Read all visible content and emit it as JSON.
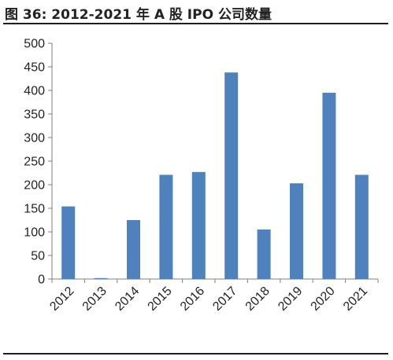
{
  "figure": {
    "title": "图 36:  2012-2021 年 A 股 IPO 公司数量"
  },
  "colors": {
    "bar": "#4f81bd",
    "axis": "#7f7f7f",
    "rule": "#1f1f1f"
  },
  "chart_data": {
    "type": "bar",
    "title": "",
    "xlabel": "",
    "ylabel": "",
    "categories": [
      "2012",
      "2013",
      "2014",
      "2015",
      "2016",
      "2017",
      "2018",
      "2019",
      "2020",
      "2021"
    ],
    "values": [
      154,
      2,
      125,
      221,
      227,
      438,
      105,
      203,
      395,
      221
    ],
    "ylim": [
      0,
      500
    ],
    "yticks": [
      0,
      50,
      100,
      150,
      200,
      250,
      300,
      350,
      400,
      450,
      500
    ],
    "grid": false,
    "legend": "none"
  }
}
